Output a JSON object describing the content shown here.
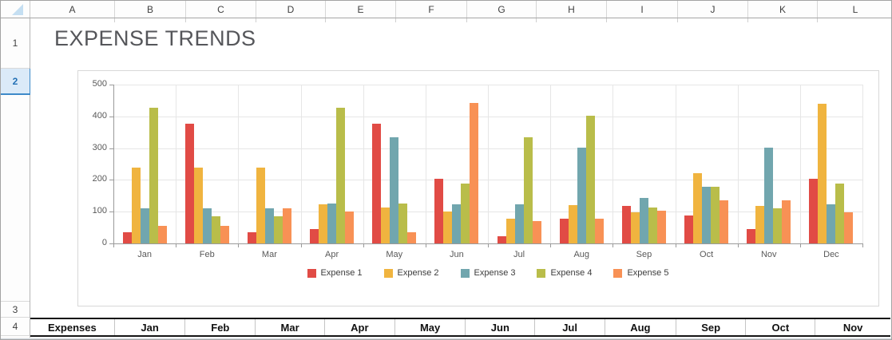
{
  "sheet": {
    "title": "EXPENSE TRENDS",
    "column_headers": [
      "A",
      "B",
      "C",
      "D",
      "E",
      "F",
      "G",
      "H",
      "I",
      "J",
      "K",
      "L"
    ],
    "row_headers": [
      "1",
      "2",
      "3",
      "4"
    ],
    "selected_row": "2",
    "table_row": {
      "cells": [
        "Expenses",
        "Jan",
        "Feb",
        "Mar",
        "Apr",
        "May",
        "Jun",
        "Jul",
        "Aug",
        "Sep",
        "Oct",
        "Nov"
      ]
    }
  },
  "colors": {
    "selection_accent": "#3d8ac9",
    "selection_bg": "#dbeaf8",
    "table_border": "#141414",
    "axis_gray": "#9a9a9a"
  },
  "chart_data": {
    "type": "bar",
    "title": "",
    "categories": [
      "Jan",
      "Feb",
      "Mar",
      "Apr",
      "May",
      "Jun",
      "Jul",
      "Aug",
      "Sep",
      "Oct",
      "Nov",
      "Dec"
    ],
    "series": [
      {
        "name": "Expense 1",
        "color": "#e14b45",
        "values": [
          34,
          376,
          34,
          46,
          376,
          203,
          22,
          78,
          119,
          89,
          46,
          203
        ]
      },
      {
        "name": "Expense 2",
        "color": "#f0b43f",
        "values": [
          238,
          238,
          238,
          123,
          112,
          100,
          78,
          120,
          98,
          220,
          119,
          440
        ]
      },
      {
        "name": "Expense 3",
        "color": "#71a6ae",
        "values": [
          110,
          110,
          110,
          125,
          335,
          123,
          122,
          301,
          144,
          178,
          301,
          122
        ]
      },
      {
        "name": "Expense 4",
        "color": "#b9bd4a",
        "values": [
          427,
          85,
          85,
          427,
          125,
          188,
          334,
          401,
          113,
          178,
          110,
          188
        ]
      },
      {
        "name": "Expense 5",
        "color": "#f89155",
        "values": [
          55,
          55,
          110,
          100,
          35,
          443,
          70,
          78,
          104,
          135,
          135,
          99
        ]
      }
    ],
    "ylim": [
      0,
      500
    ],
    "yticks": [
      0,
      100,
      200,
      300,
      400,
      500
    ],
    "grid": true,
    "legend_position": "bottom"
  }
}
